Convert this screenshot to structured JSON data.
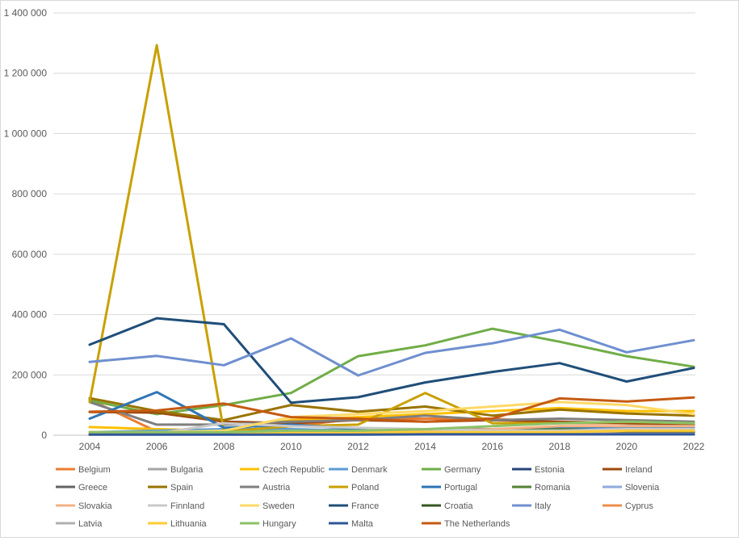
{
  "chart_data": {
    "type": "line",
    "title": "",
    "xlabel": "",
    "ylabel": "",
    "x": [
      "2004",
      "2006",
      "2008",
      "2010",
      "2012",
      "2014",
      "2016",
      "2018",
      "2020",
      "2022"
    ],
    "y_ticks": [
      "0",
      "200 000",
      "400 000",
      "600 000",
      "800 000",
      "1 000 000",
      "1 200 000",
      "1 400 000"
    ],
    "ylim": [
      0,
      1400000
    ],
    "grid": "horizontal",
    "legend_position": "bottom",
    "series": [
      {
        "name": "Belgium",
        "color": "#ED7D31",
        "values": [
          118000,
          12000,
          12000,
          30000,
          55000,
          55000,
          55000,
          40000,
          40000,
          35000
        ]
      },
      {
        "name": "Bulgaria",
        "color": "#A5A5A5",
        "values": [
          5000,
          6000,
          10000,
          15000,
          20000,
          15000,
          15000,
          20000,
          20000,
          25000
        ]
      },
      {
        "name": "Czech Republic",
        "color": "#FFC000",
        "values": [
          27000,
          20000,
          15000,
          50000,
          60000,
          70000,
          80000,
          90000,
          80000,
          80000
        ]
      },
      {
        "name": "Denmark",
        "color": "#5B9BD5",
        "values": [
          10000,
          15000,
          20000,
          20000,
          15000,
          15000,
          15000,
          20000,
          25000,
          25000
        ]
      },
      {
        "name": "Germany",
        "color": "#70AD47",
        "values": [
          115000,
          70000,
          100000,
          140000,
          262000,
          298000,
          353000,
          310000,
          262000,
          227000
        ]
      },
      {
        "name": "Estonia",
        "color": "#264478",
        "values": [
          3000,
          3000,
          3000,
          5000,
          5000,
          5000,
          5000,
          5000,
          8000,
          8000
        ]
      },
      {
        "name": "Ireland",
        "color": "#9E480E",
        "values": [
          77000,
          75000,
          45000,
          40000,
          50000,
          45000,
          50000,
          45000,
          40000,
          38000
        ]
      },
      {
        "name": "Greece",
        "color": "#636363",
        "values": [
          3000,
          3000,
          3000,
          8000,
          5000,
          5000,
          10000,
          10000,
          8000,
          10000
        ]
      },
      {
        "name": "Spain",
        "color": "#997300",
        "values": [
          123000,
          80000,
          50000,
          100000,
          78000,
          95000,
          65000,
          85000,
          72000,
          65000
        ]
      },
      {
        "name": "Austria",
        "color": "#7F7F7F",
        "values": [
          110000,
          35000,
          35000,
          45000,
          50000,
          65000,
          50000,
          55000,
          50000,
          45000
        ]
      },
      {
        "name": "Poland",
        "color": "#C9A000",
        "values": [
          110000,
          1293000,
          12000,
          30000,
          35000,
          140000,
          40000,
          40000,
          45000,
          40000
        ]
      },
      {
        "name": "Portugal",
        "color": "#2E75B6",
        "values": [
          55000,
          143000,
          25000,
          35000,
          20000,
          20000,
          20000,
          25000,
          30000,
          30000
        ]
      },
      {
        "name": "Romania",
        "color": "#548235",
        "values": [
          5000,
          5000,
          5000,
          10000,
          10000,
          10000,
          15000,
          20000,
          15000,
          15000
        ]
      },
      {
        "name": "Slovenia",
        "color": "#8FAADC",
        "values": [
          5000,
          5000,
          8000,
          10000,
          10000,
          15000,
          15000,
          15000,
          15000,
          15000
        ]
      },
      {
        "name": "Slovakia",
        "color": "#F4B183",
        "values": [
          10000,
          8000,
          10000,
          15000,
          10000,
          15000,
          20000,
          30000,
          30000,
          30000
        ]
      },
      {
        "name": "Finnland",
        "color": "#C9C9C9",
        "values": [
          10000,
          5000,
          40000,
          30000,
          25000,
          20000,
          15000,
          15000,
          20000,
          20000
        ]
      },
      {
        "name": "Sweden",
        "color": "#FFD966",
        "values": [
          10000,
          10000,
          15000,
          60000,
          70000,
          80000,
          95000,
          110000,
          100000,
          70000
        ]
      },
      {
        "name": "France",
        "color": "#1F4E79",
        "values": [
          300000,
          388000,
          368000,
          108000,
          126000,
          175000,
          210000,
          239000,
          178000,
          223000
        ]
      },
      {
        "name": "Croatia",
        "color": "#375623",
        "values": [
          3000,
          3000,
          5000,
          5000,
          5000,
          5000,
          8000,
          8000,
          10000,
          10000
        ]
      },
      {
        "name": "Italy",
        "color": "#6F8FCF",
        "values": [
          243000,
          263000,
          232000,
          321000,
          198000,
          273000,
          305000,
          350000,
          275000,
          315000
        ]
      },
      {
        "name": "Cyprus",
        "color": "#F08C4A",
        "values": [
          5000,
          5000,
          5000,
          5000,
          5000,
          5000,
          5000,
          5000,
          5000,
          5000
        ]
      },
      {
        "name": "Latvia",
        "color": "#B0B0B0",
        "values": [
          3000,
          3000,
          3000,
          5000,
          5000,
          5000,
          5000,
          5000,
          5000,
          5000
        ]
      },
      {
        "name": "Lithuania",
        "color": "#FFCC33",
        "values": [
          5000,
          5000,
          5000,
          10000,
          10000,
          10000,
          10000,
          10000,
          15000,
          15000
        ]
      },
      {
        "name": "Hungary",
        "color": "#8CC168",
        "values": [
          10000,
          10000,
          10000,
          15000,
          15000,
          20000,
          30000,
          40000,
          45000,
          40000
        ]
      },
      {
        "name": "Malta",
        "color": "#2F5597",
        "values": [
          2000,
          2000,
          2000,
          2000,
          2000,
          3000,
          3000,
          3000,
          3000,
          3000
        ]
      },
      {
        "name": "The Netherlands",
        "color": "#C55A11",
        "values": [
          78000,
          82000,
          105000,
          60000,
          55000,
          45000,
          55000,
          122000,
          112000,
          125000
        ]
      }
    ]
  }
}
